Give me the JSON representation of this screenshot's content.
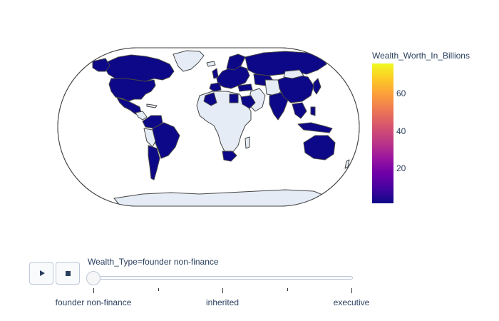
{
  "colorbar": {
    "title": "Wealth_Worth_In_Billions",
    "ticks": [
      "60",
      "40",
      "20"
    ],
    "colorscale": [
      "#0d0887",
      "#46039f",
      "#7201a8",
      "#9c179e",
      "#bd3786",
      "#d8576b",
      "#ed7953",
      "#fb9f3a",
      "#fdca26",
      "#f0f921"
    ]
  },
  "map": {
    "projection": "natural earth",
    "land_color": "#e5ecf6",
    "highlight_color": "#0d0887",
    "border_color": "#444444"
  },
  "animation": {
    "play_icon": "play-icon",
    "stop_icon": "stop-icon"
  },
  "slider": {
    "current_label": "Wealth_Type=founder non-finance",
    "steps": [
      "founder non-finance",
      "inherited",
      "executive"
    ],
    "current_index": 0
  }
}
